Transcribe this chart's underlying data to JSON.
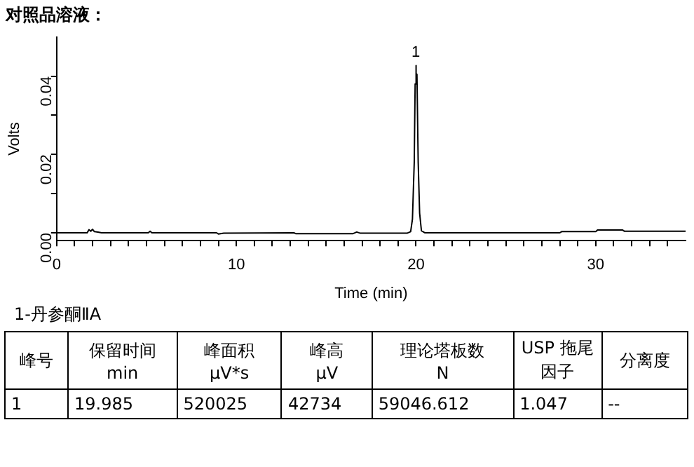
{
  "chart_data": {
    "type": "line",
    "title": "对照品溶液：",
    "xlabel": "Time (min)",
    "ylabel": "Volts",
    "xlim": [
      0,
      35
    ],
    "ylim": [
      -0.002,
      0.05
    ],
    "xticks": [
      0,
      {
        "value": 1,
        "label": null
      },
      {
        "value": 2,
        "label": null
      },
      {
        "value": 3,
        "label": null
      },
      {
        "value": 4,
        "label": null
      },
      {
        "value": 5,
        "label": null
      },
      {
        "value": 6,
        "label": null
      },
      {
        "value": 7,
        "label": null
      },
      {
        "value": 8,
        "label": null
      },
      {
        "value": 9,
        "label": null
      },
      10,
      {
        "value": 11,
        "label": null
      },
      {
        "value": 12,
        "label": null
      },
      {
        "value": 13,
        "label": null
      },
      {
        "value": 14,
        "label": null
      },
      {
        "value": 15,
        "label": null
      },
      {
        "value": 16,
        "label": null
      },
      {
        "value": 17,
        "label": null
      },
      {
        "value": 18,
        "label": null
      },
      {
        "value": 19,
        "label": null
      },
      20,
      {
        "value": 21,
        "label": null
      },
      {
        "value": 22,
        "label": null
      },
      {
        "value": 23,
        "label": null
      },
      {
        "value": 24,
        "label": null
      },
      {
        "value": 25,
        "label": null
      },
      {
        "value": 26,
        "label": null
      },
      {
        "value": 27,
        "label": null
      },
      {
        "value": 28,
        "label": null
      },
      {
        "value": 29,
        "label": null
      },
      30,
      {
        "value": 31,
        "label": null
      },
      {
        "value": 32,
        "label": null
      },
      {
        "value": 33,
        "label": null
      },
      {
        "value": 34,
        "label": null
      }
    ],
    "yticks": [
      {
        "value": 0,
        "label": "0.00"
      },
      {
        "value": 0.01,
        "label": null
      },
      {
        "value": 0.02,
        "label": "0.02"
      },
      {
        "value": 0.03,
        "label": null
      },
      {
        "value": 0.04,
        "label": "0.04"
      }
    ],
    "grid": false,
    "legend": false,
    "marker": "none",
    "line_style": "solid",
    "series": [
      {
        "color": "#000000",
        "x": [
          0,
          1.7,
          1.8,
          1.9,
          2.0,
          2.1,
          2.3,
          2.5,
          5.1,
          5.2,
          5.3,
          8.9,
          9.0,
          9.3,
          13.2,
          13.3,
          16.5,
          16.7,
          16.9,
          19.5,
          19.7,
          19.8,
          19.9,
          19.95,
          19.985,
          20.02,
          20.05,
          20.12,
          20.2,
          20.3,
          20.5,
          28,
          28.1,
          30,
          30.1,
          31.5,
          31.6,
          35
        ],
        "values": [
          0,
          0,
          0.0008,
          0.0004,
          0.0009,
          0.0003,
          0.0002,
          0,
          0,
          0.0004,
          0,
          0,
          -0.0003,
          -0.0001,
          0,
          -0.0002,
          -0.0002,
          0.0002,
          -0.0001,
          -0.0001,
          0.0003,
          0.0035,
          0.018,
          0.038,
          0.0427,
          0.0395,
          0.0405,
          0.018,
          0.005,
          0.0005,
          0,
          0,
          0.0003,
          0.0003,
          0.0007,
          0.0007,
          0.0004,
          0.0004
        ]
      }
    ],
    "annotations": [
      {
        "text": "1",
        "x": 19.985,
        "y": 0.0427
      },
      "1-丹参酮ⅡA",
      "峰号",
      "保留时间\nmin",
      "峰面积\nμV*s",
      "峰高\nμV",
      "理论塔板数\nN",
      "USP 拖尾因子",
      "分离度",
      "1",
      "19.985",
      "520025",
      "42734",
      "59046.612",
      "1.047",
      "--"
    ]
  }
}
